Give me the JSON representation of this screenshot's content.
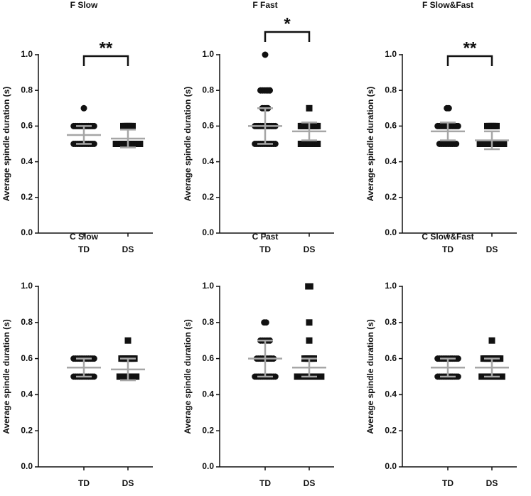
{
  "chart_data": [
    {
      "type": "dot",
      "title": "F Slow",
      "ylabel": "Average spindle duration (s)",
      "categories": [
        "TD",
        "DS"
      ],
      "markers": [
        "circle",
        "square"
      ],
      "color": "#111111",
      "bar_color": "#a6a6a6",
      "points": [
        [
          0.5,
          0.5,
          0.5,
          0.5,
          0.5,
          0.5,
          0.5,
          0.5,
          0.5,
          0.5,
          0.5,
          0.5,
          0.6,
          0.6,
          0.6,
          0.6,
          0.6,
          0.6,
          0.6,
          0.6,
          0.6,
          0.6,
          0.6,
          0.6,
          0.7
        ],
        [
          0.5,
          0.5,
          0.5,
          0.5,
          0.5,
          0.5,
          0.5,
          0.5,
          0.5,
          0.5,
          0.5,
          0.5,
          0.5,
          0.5,
          0.6,
          0.6,
          0.6,
          0.6,
          0.6,
          0.6
        ]
      ],
      "mean": [
        0.55,
        0.53
      ],
      "sd": [
        0.05,
        0.05
      ],
      "annotation": "**",
      "ylim": [
        0,
        1
      ],
      "yticks": [
        {
          "value": 0,
          "label": "0.0"
        },
        0.2,
        0.4,
        0.6,
        0.8,
        {
          "value": 1,
          "label": "1.0"
        }
      ]
    },
    {
      "type": "dot",
      "title": "F Fast",
      "ylabel": "Average spindle duration (s)",
      "categories": [
        "TD",
        "DS"
      ],
      "markers": [
        "circle",
        "square"
      ],
      "color": "#111111",
      "bar_color": "#a6a6a6",
      "points": [
        [
          0.5,
          0.5,
          0.5,
          0.5,
          0.5,
          0.5,
          0.5,
          0.5,
          0.5,
          0.5,
          0.5,
          0.5,
          0.6,
          0.6,
          0.6,
          0.6,
          0.6,
          0.6,
          0.6,
          0.6,
          0.6,
          0.6,
          0.6,
          0.6,
          0.7,
          0.7,
          0.7,
          0.7,
          0.8,
          0.8,
          0.8,
          0.8,
          0.8,
          0.8,
          1.0
        ],
        [
          0.5,
          0.5,
          0.5,
          0.5,
          0.5,
          0.5,
          0.5,
          0.5,
          0.5,
          0.5,
          0.6,
          0.6,
          0.6,
          0.6,
          0.6,
          0.6,
          0.6,
          0.6,
          0.6,
          0.6,
          0.7
        ]
      ],
      "mean": [
        0.6,
        0.57
      ],
      "sd": [
        0.1,
        0.05
      ],
      "annotation": "*",
      "ylim": [
        0,
        1
      ],
      "yticks": [
        {
          "value": 0,
          "label": "0.0"
        },
        0.2,
        0.4,
        0.6,
        0.8,
        {
          "value": 1,
          "label": "1.0"
        }
      ]
    },
    {
      "type": "dot",
      "title": "F Slow&Fast",
      "ylabel": "Average spindle duration (s)",
      "categories": [
        "TD",
        "DS"
      ],
      "markers": [
        "circle",
        "square"
      ],
      "color": "#111111",
      "bar_color": "#a6a6a6",
      "points": [
        [
          0.5,
          0.5,
          0.5,
          0.5,
          0.5,
          0.5,
          0.5,
          0.5,
          0.5,
          0.5,
          0.6,
          0.6,
          0.6,
          0.6,
          0.6,
          0.6,
          0.6,
          0.6,
          0.6,
          0.6,
          0.6,
          0.6,
          0.7,
          0.7
        ],
        [
          0.5,
          0.5,
          0.5,
          0.5,
          0.5,
          0.5,
          0.5,
          0.5,
          0.5,
          0.5,
          0.5,
          0.5,
          0.5,
          0.5,
          0.6,
          0.6,
          0.6,
          0.6,
          0.6,
          0.6
        ]
      ],
      "mean": [
        0.57,
        0.52
      ],
      "sd": [
        0.05,
        0.05
      ],
      "annotation": "**",
      "ylim": [
        0,
        1
      ],
      "yticks": [
        {
          "value": 0,
          "label": "0.0"
        },
        0.2,
        0.4,
        0.6,
        0.8,
        {
          "value": 1,
          "label": "1.0"
        }
      ]
    },
    {
      "type": "dot",
      "title": "C Slow",
      "ylabel": "Average spindle duration (s)",
      "categories": [
        "TD",
        "DS"
      ],
      "markers": [
        "circle",
        "square"
      ],
      "color": "#111111",
      "bar_color": "#a6a6a6",
      "points": [
        [
          0.5,
          0.5,
          0.5,
          0.5,
          0.5,
          0.5,
          0.5,
          0.5,
          0.5,
          0.5,
          0.5,
          0.5,
          0.6,
          0.6,
          0.6,
          0.6,
          0.6,
          0.6,
          0.6,
          0.6,
          0.6,
          0.6,
          0.6,
          0.6
        ],
        [
          0.5,
          0.5,
          0.5,
          0.5,
          0.5,
          0.5,
          0.5,
          0.5,
          0.5,
          0.5,
          0.6,
          0.6,
          0.6,
          0.6,
          0.6,
          0.6,
          0.6,
          0.6,
          0.7
        ]
      ],
      "mean": [
        0.55,
        0.54
      ],
      "sd": [
        0.05,
        0.06
      ],
      "ylim": [
        0,
        1
      ],
      "yticks": [
        {
          "value": 0,
          "label": "0.0"
        },
        0.2,
        0.4,
        0.6,
        0.8,
        {
          "value": 1,
          "label": "1.0"
        }
      ]
    },
    {
      "type": "dot",
      "title": "C Fast",
      "ylabel": "Average spindle duration (s)",
      "categories": [
        "TD",
        "DS"
      ],
      "markers": [
        "circle",
        "square"
      ],
      "color": "#111111",
      "bar_color": "#a6a6a6",
      "points": [
        [
          0.5,
          0.5,
          0.5,
          0.5,
          0.5,
          0.5,
          0.5,
          0.5,
          0.5,
          0.5,
          0.5,
          0.5,
          0.6,
          0.6,
          0.6,
          0.6,
          0.6,
          0.6,
          0.6,
          0.6,
          0.6,
          0.6,
          0.7,
          0.7,
          0.7,
          0.7,
          0.7,
          0.7,
          0.8,
          0.8
        ],
        [
          0.5,
          0.5,
          0.5,
          0.5,
          0.5,
          0.5,
          0.5,
          0.5,
          0.5,
          0.5,
          0.5,
          0.5,
          0.5,
          0.5,
          0.6,
          0.6,
          0.6,
          0.6,
          0.6,
          0.6,
          0.7,
          0.8,
          1.0,
          1.0
        ]
      ],
      "mean": [
        0.6,
        0.55
      ],
      "sd": [
        0.1,
        0.05
      ],
      "ylim": [
        0,
        1
      ],
      "yticks": [
        {
          "value": 0,
          "label": "0.0"
        },
        0.2,
        0.4,
        0.6,
        0.8,
        {
          "value": 1,
          "label": "1.0"
        }
      ]
    },
    {
      "type": "dot",
      "title": "C Slow&Fast",
      "ylabel": "Average spindle duration (s)",
      "categories": [
        "TD",
        "DS"
      ],
      "markers": [
        "circle",
        "square"
      ],
      "color": "#111111",
      "bar_color": "#a6a6a6",
      "points": [
        [
          0.5,
          0.5,
          0.5,
          0.5,
          0.5,
          0.5,
          0.5,
          0.5,
          0.5,
          0.5,
          0.5,
          0.5,
          0.6,
          0.6,
          0.6,
          0.6,
          0.6,
          0.6,
          0.6,
          0.6,
          0.6,
          0.6,
          0.6,
          0.6
        ],
        [
          0.5,
          0.5,
          0.5,
          0.5,
          0.5,
          0.5,
          0.5,
          0.5,
          0.5,
          0.5,
          0.5,
          0.5,
          0.6,
          0.6,
          0.6,
          0.6,
          0.6,
          0.6,
          0.6,
          0.6,
          0.6,
          0.6,
          0.7
        ]
      ],
      "mean": [
        0.55,
        0.55
      ],
      "sd": [
        0.05,
        0.05
      ],
      "ylim": [
        0,
        1
      ],
      "yticks": [
        {
          "value": 0,
          "label": "0.0"
        },
        0.2,
        0.4,
        0.6,
        0.8,
        {
          "value": 1,
          "label": "1.0"
        }
      ]
    }
  ]
}
